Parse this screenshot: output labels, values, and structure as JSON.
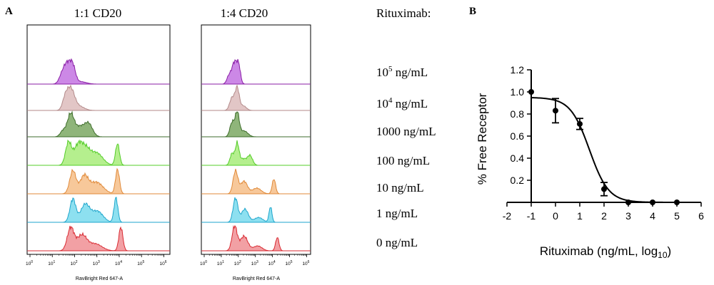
{
  "panel_a": {
    "letter": "A",
    "col_titles": [
      "1:1 CD20",
      "1:4 CD20"
    ],
    "legend_title": "Rituximab:",
    "x_axis_label": "RavBright Red 647-A",
    "x_tick_exponents": [
      "0",
      "1",
      "2",
      "3",
      "4",
      "5",
      "6"
    ],
    "row_labels": [
      {
        "base": "10",
        "sup": "5",
        "unit": " ng/mL"
      },
      {
        "base": "10",
        "sup": "4",
        "unit": " ng/mL"
      },
      {
        "base": "1000 ng/mL",
        "sup": "",
        "unit": ""
      },
      {
        "base": "100 ng/mL",
        "sup": "",
        "unit": ""
      },
      {
        "base": "10 ng/mL",
        "sup": "",
        "unit": ""
      },
      {
        "base": "1 ng/mL",
        "sup": "",
        "unit": ""
      },
      {
        "base": "0 ng/mL",
        "sup": "",
        "unit": ""
      }
    ],
    "row_colors": [
      {
        "fill": "#cc88e6",
        "stroke": "#8a1fa6"
      },
      {
        "fill": "#e2c6c6",
        "stroke": "#b38a8a"
      },
      {
        "fill": "#8fb57a",
        "stroke": "#3f6e2c"
      },
      {
        "fill": "#b5ef8e",
        "stroke": "#55cc2a"
      },
      {
        "fill": "#f7c89a",
        "stroke": "#e08a3a"
      },
      {
        "fill": "#8de0f0",
        "stroke": "#1fa6cc"
      },
      {
        "fill": "#f2a0a4",
        "stroke": "#d92b33"
      }
    ],
    "histograms": {
      "col1": [
        [
          {
            "m": 1.8,
            "s": 0.16,
            "a": 1.0
          },
          {
            "m": 2.05,
            "s": 0.12,
            "a": 0.75
          },
          {
            "m": 1.55,
            "s": 0.13,
            "a": 0.35
          },
          {
            "m": 2.4,
            "s": 0.25,
            "a": 0.12
          }
        ],
        [
          {
            "m": 1.95,
            "s": 0.17,
            "a": 1.0
          },
          {
            "m": 1.7,
            "s": 0.12,
            "a": 0.45
          },
          {
            "m": 2.35,
            "s": 0.22,
            "a": 0.18
          }
        ],
        [
          {
            "m": 1.95,
            "s": 0.15,
            "a": 1.0
          },
          {
            "m": 2.75,
            "s": 0.18,
            "a": 0.58
          },
          {
            "m": 2.35,
            "s": 0.2,
            "a": 0.42
          },
          {
            "m": 1.6,
            "s": 0.12,
            "a": 0.25
          }
        ],
        [
          {
            "m": 1.85,
            "s": 0.13,
            "a": 0.85
          },
          {
            "m": 2.3,
            "s": 0.2,
            "a": 0.8
          },
          {
            "m": 3.1,
            "s": 0.28,
            "a": 0.48
          },
          {
            "m": 4.05,
            "s": 0.09,
            "a": 0.82
          },
          {
            "m": 2.65,
            "s": 0.18,
            "a": 0.45
          }
        ],
        [
          {
            "m": 2.05,
            "s": 0.14,
            "a": 0.95
          },
          {
            "m": 2.55,
            "s": 0.18,
            "a": 0.7
          },
          {
            "m": 3.1,
            "s": 0.3,
            "a": 0.48
          },
          {
            "m": 4.05,
            "s": 0.09,
            "a": 1.0
          }
        ],
        [
          {
            "m": 2.05,
            "s": 0.13,
            "a": 0.95
          },
          {
            "m": 2.6,
            "s": 0.2,
            "a": 0.72
          },
          {
            "m": 3.15,
            "s": 0.25,
            "a": 0.45
          },
          {
            "m": 3.98,
            "s": 0.085,
            "a": 1.0
          }
        ],
        [
          {
            "m": 1.95,
            "s": 0.15,
            "a": 0.92
          },
          {
            "m": 2.45,
            "s": 0.22,
            "a": 0.62
          },
          {
            "m": 3.05,
            "s": 0.3,
            "a": 0.28
          },
          {
            "m": 4.2,
            "s": 0.09,
            "a": 0.95
          }
        ]
      ],
      "col2": [
        [
          {
            "m": 1.95,
            "s": 0.17,
            "a": 1.0
          },
          {
            "m": 2.2,
            "s": 0.1,
            "a": 0.6
          },
          {
            "m": 1.6,
            "s": 0.12,
            "a": 0.3
          }
        ],
        [
          {
            "m": 2.1,
            "s": 0.12,
            "a": 0.95
          },
          {
            "m": 1.8,
            "s": 0.14,
            "a": 0.55
          },
          {
            "m": 2.45,
            "s": 0.18,
            "a": 0.2
          }
        ],
        [
          {
            "m": 2.1,
            "s": 0.12,
            "a": 1.0
          },
          {
            "m": 1.8,
            "s": 0.13,
            "a": 0.6
          },
          {
            "m": 2.5,
            "s": 0.22,
            "a": 0.25
          }
        ],
        [
          {
            "m": 2.1,
            "s": 0.11,
            "a": 1.0
          },
          {
            "m": 1.8,
            "s": 0.12,
            "a": 0.55
          },
          {
            "m": 2.85,
            "s": 0.15,
            "a": 0.45
          },
          {
            "m": 2.45,
            "s": 0.18,
            "a": 0.3
          }
        ],
        [
          {
            "m": 2.0,
            "s": 0.14,
            "a": 1.0
          },
          {
            "m": 2.5,
            "s": 0.2,
            "a": 0.55
          },
          {
            "m": 3.25,
            "s": 0.25,
            "a": 0.25
          },
          {
            "m": 4.25,
            "s": 0.1,
            "a": 0.65
          }
        ],
        [
          {
            "m": 2.0,
            "s": 0.14,
            "a": 1.0
          },
          {
            "m": 2.55,
            "s": 0.2,
            "a": 0.55
          },
          {
            "m": 3.35,
            "s": 0.25,
            "a": 0.2
          },
          {
            "m": 4.05,
            "s": 0.085,
            "a": 0.65
          }
        ],
        [
          {
            "m": 1.95,
            "s": 0.15,
            "a": 1.0
          },
          {
            "m": 2.5,
            "s": 0.22,
            "a": 0.6
          },
          {
            "m": 3.3,
            "s": 0.25,
            "a": 0.2
          },
          {
            "m": 4.45,
            "s": 0.1,
            "a": 0.55
          }
        ]
      ]
    }
  },
  "chart_data": {
    "type": "scatter",
    "panel_letter": "B",
    "title": "",
    "xlabel": "Rituximab (ng/mL, log",
    "xlabel_subscript": "10",
    "xlabel_close": ")",
    "ylabel": "% Free Receptor",
    "xlim": [
      -2,
      6
    ],
    "ylim": [
      0,
      1.2
    ],
    "xticks": [
      "-2",
      "-1",
      "0",
      "1",
      "2",
      "3",
      "4",
      "5",
      "6"
    ],
    "yticks": [
      "0.2",
      "0.4",
      "0.6",
      "0.8",
      "1.0",
      "1.2"
    ],
    "points": [
      {
        "x": -1,
        "y": 1.0,
        "err": 0
      },
      {
        "x": 0,
        "y": 0.83,
        "err": 0.11
      },
      {
        "x": 1,
        "y": 0.71,
        "err": 0.05
      },
      {
        "x": 2,
        "y": 0.12,
        "err": 0.06
      },
      {
        "x": 3,
        "y": 0.0,
        "err": 0
      },
      {
        "x": 4,
        "y": 0.0,
        "err": 0
      },
      {
        "x": 5,
        "y": 0.0,
        "err": 0
      }
    ],
    "fit": {
      "model": "four-parameter logistic",
      "top": 0.95,
      "bottom": 0.0,
      "log_ic50": 1.4,
      "hill_slope": 1.1,
      "x_range": [
        -1,
        5
      ]
    }
  }
}
